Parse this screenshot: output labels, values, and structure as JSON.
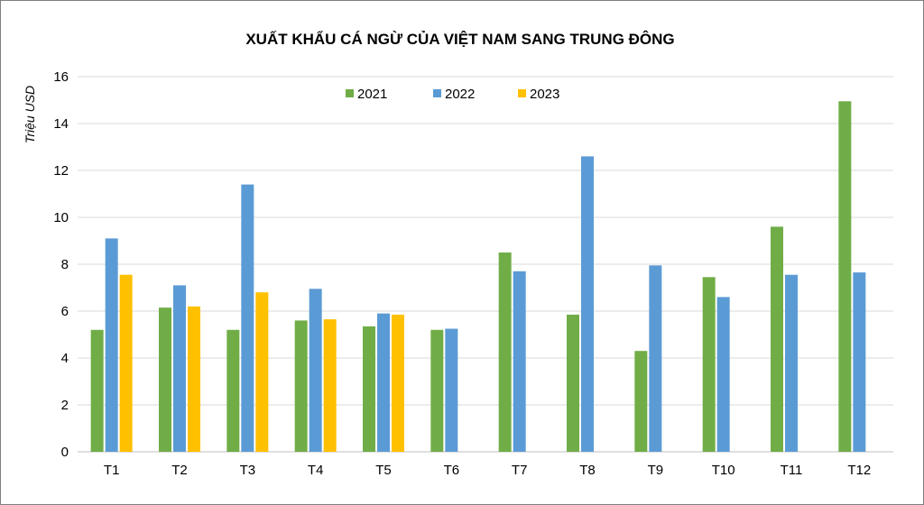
{
  "chart_data": {
    "type": "bar",
    "title": "XUẤT KHẨU CÁ NGỪ CỦA VIỆT NAM SANG TRUNG ĐÔNG",
    "xlabel": "",
    "ylabel": "Triệu USD",
    "ylim": [
      0,
      16
    ],
    "yticks": [
      0,
      2,
      4,
      6,
      8,
      10,
      12,
      14,
      16
    ],
    "grid": true,
    "legend_position": "top-center",
    "categories": [
      "T1",
      "T2",
      "T3",
      "T4",
      "T5",
      "T6",
      "T7",
      "T8",
      "T9",
      "T10",
      "T11",
      "T12"
    ],
    "series": [
      {
        "name": "2021",
        "color": "#70ad47",
        "values": [
          5.2,
          6.15,
          5.2,
          5.6,
          5.35,
          5.2,
          8.5,
          5.85,
          4.3,
          7.45,
          9.6,
          14.95
        ]
      },
      {
        "name": "2022",
        "color": "#5b9bd5",
        "values": [
          9.1,
          7.1,
          11.4,
          6.95,
          5.9,
          5.25,
          7.7,
          12.6,
          7.95,
          6.6,
          7.55,
          7.65
        ]
      },
      {
        "name": "2023",
        "color": "#ffc000",
        "values": [
          7.55,
          6.2,
          6.8,
          5.65,
          5.85,
          null,
          null,
          null,
          null,
          null,
          null,
          null
        ]
      }
    ]
  }
}
